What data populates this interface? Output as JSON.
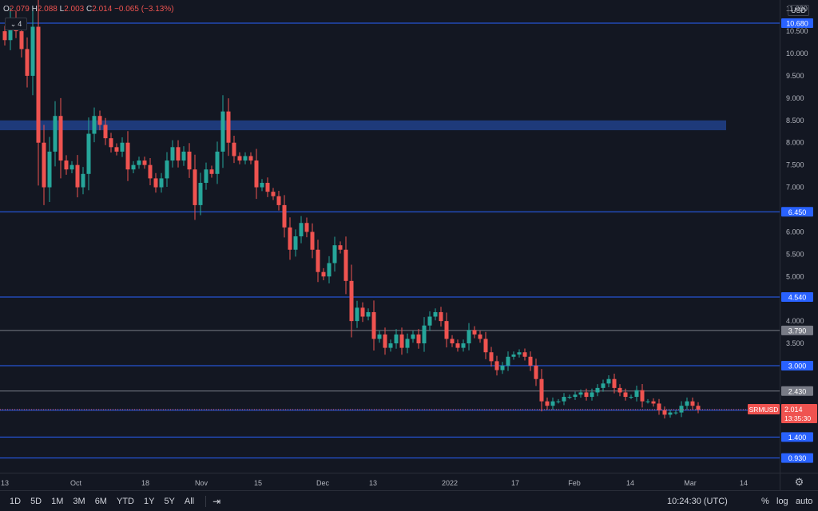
{
  "legend": {
    "o_label": "O",
    "o_value": "2.079",
    "h_label": "H",
    "h_value": "2.088",
    "l_label": "L",
    "l_value": "2.003",
    "c_label": "C",
    "c_value": "2.014",
    "change": "−0.065 (−3.13%)"
  },
  "collapse_count": "4",
  "currency": "USD",
  "symbol_tag": "SRMUSD",
  "last_price_label": "2.014",
  "countdown": "13:35:30",
  "colors": {
    "background": "#131722",
    "up": "#26a69a",
    "down": "#ef5350",
    "level_blue": "#2962ff",
    "level_gray": "#787b86",
    "zone": "#1e3a7a"
  },
  "bottom_bar": {
    "ranges": [
      "1D",
      "5D",
      "1M",
      "3M",
      "6M",
      "YTD",
      "1Y",
      "5Y",
      "All"
    ],
    "compare_icon": "calendar-range-icon",
    "time": "10:24:30 (UTC)",
    "percent": "%",
    "log": "log",
    "auto": "auto"
  },
  "chart_data": {
    "type": "candlestick",
    "x_ticks": [
      "13",
      "Oct",
      "18",
      "Nov",
      "15",
      "Dec",
      "13",
      "2022",
      "17",
      "Feb",
      "14",
      "Mar",
      "14"
    ],
    "y_ticks": [
      "11.000",
      "10.500",
      "10.000",
      "9.500",
      "9.000",
      "8.500",
      "8.000",
      "7.500",
      "7.000",
      "6.000",
      "5.500",
      "5.000",
      "4.000",
      "3.500"
    ],
    "ylim": [
      0.6,
      11.2
    ],
    "horizontal_levels": [
      {
        "value": 10.68,
        "label": "10.680",
        "color": "#2962ff"
      },
      {
        "value": 6.45,
        "label": "6.450",
        "color": "#2962ff"
      },
      {
        "value": 4.54,
        "label": "4.540",
        "color": "#2962ff"
      },
      {
        "value": 3.79,
        "label": "3.790",
        "color": "#787b86"
      },
      {
        "value": 3.0,
        "label": "3.000",
        "color": "#2962ff"
      },
      {
        "value": 2.43,
        "label": "2.430",
        "color": "#787b86"
      },
      {
        "value": 2.0,
        "label": "2.000",
        "color": "#2962ff"
      },
      {
        "value": 1.4,
        "label": "1.400",
        "color": "#2962ff"
      },
      {
        "value": 0.93,
        "label": "0.930",
        "color": "#2962ff"
      }
    ],
    "zone": {
      "low": 8.28,
      "high": 8.5
    },
    "last_price": 2.014,
    "closes": [
      10.3,
      10.8,
      10.5,
      10.1,
      9.5,
      10.6,
      8.0,
      7.0,
      7.8,
      8.6,
      7.6,
      7.4,
      7.5,
      7.0,
      7.3,
      8.2,
      8.6,
      8.4,
      8.1,
      7.9,
      7.8,
      8.0,
      7.4,
      7.5,
      7.6,
      7.5,
      7.2,
      7.0,
      7.2,
      7.6,
      7.9,
      7.6,
      7.8,
      7.4,
      6.6,
      7.1,
      7.4,
      7.3,
      7.8,
      8.7,
      8.0,
      7.7,
      7.6,
      7.7,
      7.6,
      7.0,
      7.1,
      6.9,
      6.8,
      6.6,
      6.1,
      5.6,
      5.9,
      6.2,
      6.0,
      5.6,
      5.1,
      5.0,
      5.3,
      5.7,
      5.6,
      4.9,
      4.0,
      4.3,
      4.1,
      4.2,
      3.6,
      3.7,
      3.4,
      3.5,
      3.7,
      3.4,
      3.6,
      3.7,
      3.5,
      3.9,
      4.1,
      4.2,
      4.0,
      3.6,
      3.5,
      3.4,
      3.5,
      3.8,
      3.7,
      3.6,
      3.3,
      3.1,
      2.9,
      3.0,
      3.2,
      3.25,
      3.3,
      3.2,
      3.0,
      2.7,
      2.2,
      2.1,
      2.2,
      2.2,
      2.3,
      2.3,
      2.35,
      2.4,
      2.3,
      2.4,
      2.5,
      2.6,
      2.7,
      2.5,
      2.4,
      2.3,
      2.3,
      2.45,
      2.2,
      2.2,
      2.15,
      2.0,
      1.9,
      1.95,
      1.95,
      2.1,
      2.2,
      2.1,
      2.014
    ]
  }
}
